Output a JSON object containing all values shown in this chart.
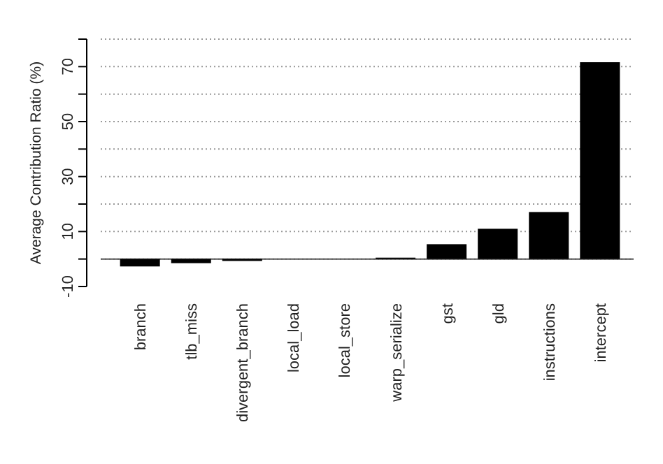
{
  "chart_data": {
    "type": "bar",
    "ylabel": "Average Contribution Ratio (%)",
    "categories": [
      "branch",
      "tlb_miss",
      "divergent_branch",
      "local_load",
      "local_store",
      "warp_serialize",
      "gst",
      "gld",
      "instructions",
      "intercept"
    ],
    "values": [
      -2.7,
      -1.5,
      -0.7,
      0,
      0,
      0.5,
      5.4,
      11,
      17.1,
      71.6
    ],
    "color": "#000000",
    "ylim": [
      -10,
      80
    ],
    "yticks": [
      -10,
      {
        "value": 0,
        "label": null
      },
      10,
      {
        "value": 20,
        "label": null
      },
      30,
      {
        "value": 40,
        "label": null
      },
      50,
      {
        "value": 60,
        "label": null
      },
      70,
      {
        "value": 80,
        "label": null
      }
    ],
    "grid": "y",
    "ref_lines": [
      {
        "axis": "y",
        "value": 0,
        "color": "#555555",
        "line_style": "solid"
      }
    ]
  }
}
